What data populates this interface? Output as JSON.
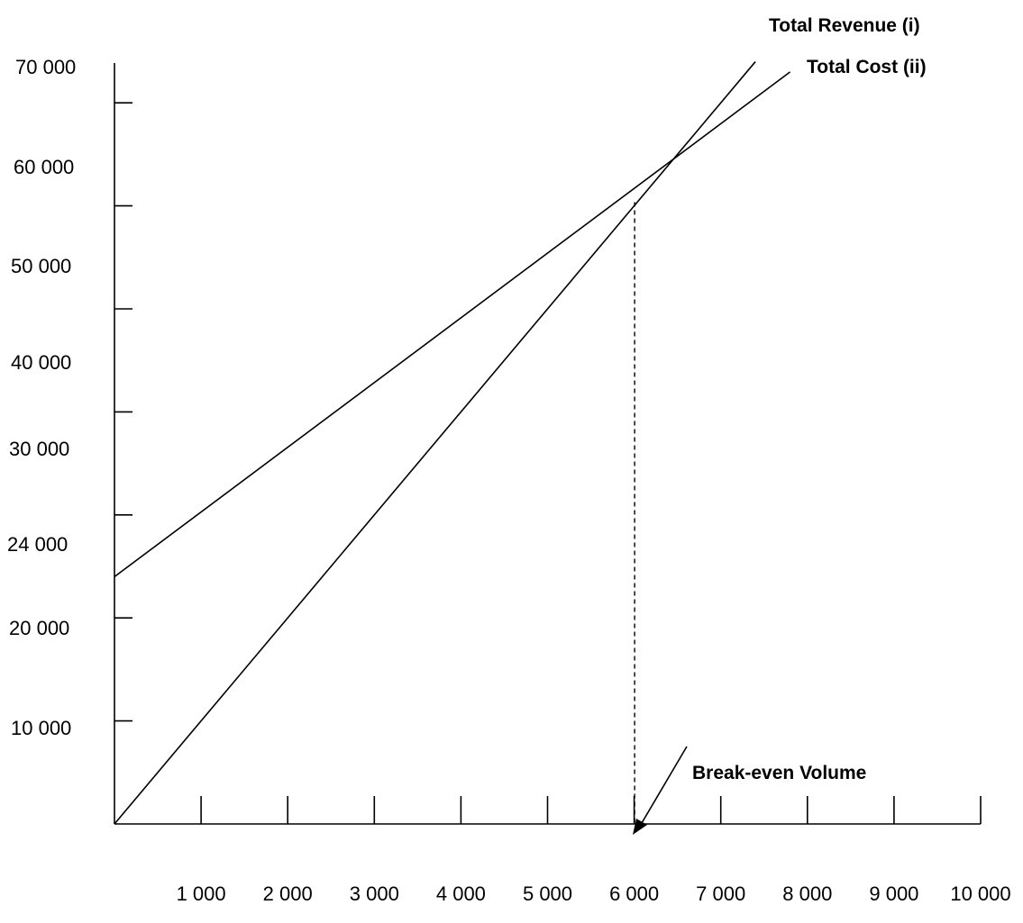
{
  "chart_data": {
    "type": "line",
    "title": "",
    "xlabel": "",
    "ylabel": "",
    "xlim": [
      0,
      10000
    ],
    "ylim": [
      0,
      70000
    ],
    "x_ticks": [
      1000,
      2000,
      3000,
      4000,
      5000,
      6000,
      7000,
      8000,
      9000,
      10000
    ],
    "x_tick_labels": [
      "1 000",
      "2 000",
      "3 000",
      "4 000",
      "5 000",
      "6 000",
      "7 000",
      "8 000",
      "9 000",
      "10 000"
    ],
    "y_ticks": [
      {
        "value": 10000,
        "label": "10 000"
      },
      {
        "value": 20000,
        "label": "20 000"
      },
      {
        "value": 24000,
        "label": "24 000"
      },
      {
        "value": 30000,
        "label": "30 000"
      },
      {
        "value": 40000,
        "label": "40 000"
      },
      {
        "value": 50000,
        "label": "50 000"
      },
      {
        "value": 60000,
        "label": "60 000"
      },
      {
        "value": 70000,
        "label": "70 000"
      }
    ],
    "grid": false,
    "series": [
      {
        "name": "Total Revenue (i)",
        "x": [
          0,
          7400
        ],
        "y": [
          0,
          74000
        ]
      },
      {
        "name": "Total Cost (ii)",
        "x": [
          0,
          7800
        ],
        "y": [
          24000,
          73000
        ]
      }
    ],
    "annotations": [
      {
        "text": "Break-even Volume",
        "x": 6000,
        "y": 58000
      }
    ]
  }
}
